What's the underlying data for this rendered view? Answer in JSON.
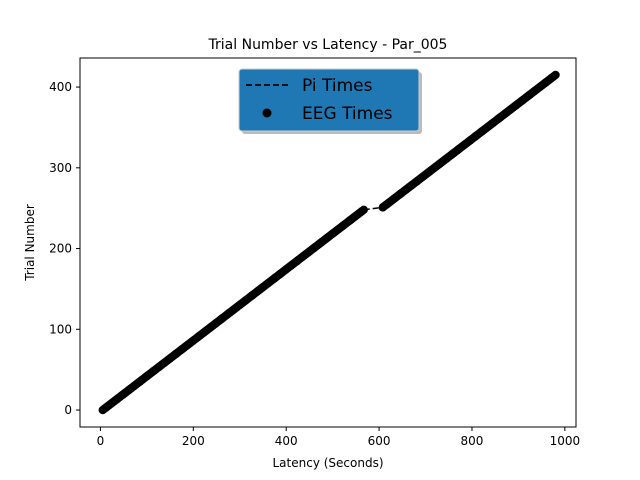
{
  "chart_data": {
    "type": "scatter",
    "title": "Trial Number vs Latency -  Par_005",
    "xlabel": "Latency (Seconds)",
    "ylabel": "Trial Number",
    "xlim": [
      -44,
      1024
    ],
    "ylim": [
      -21,
      436
    ],
    "xticks": [
      0,
      200,
      400,
      600,
      800,
      1000
    ],
    "yticks": [
      0,
      100,
      200,
      300,
      400
    ],
    "grid": false,
    "legend": {
      "placement": "top-center",
      "background": "#1f77b4",
      "entries": [
        "Pi Times",
        "EEG Times"
      ]
    },
    "series": [
      {
        "name": "Pi Times",
        "style": "dashed-line",
        "color": "#000000",
        "segments": [
          [
            [
              5,
              0
            ],
            [
              567,
              248
            ]
          ],
          [
            [
              567,
              248
            ],
            [
              608,
              251
            ]
          ],
          [
            [
              608,
              251
            ],
            [
              980,
              415
            ]
          ]
        ]
      },
      {
        "name": "EEG Times",
        "style": "markers",
        "color": "#000000",
        "segments": [
          [
            [
              5,
              0
            ],
            [
              567,
              248
            ]
          ],
          [
            [
              608,
              251
            ],
            [
              980,
              415
            ]
          ]
        ]
      }
    ]
  }
}
